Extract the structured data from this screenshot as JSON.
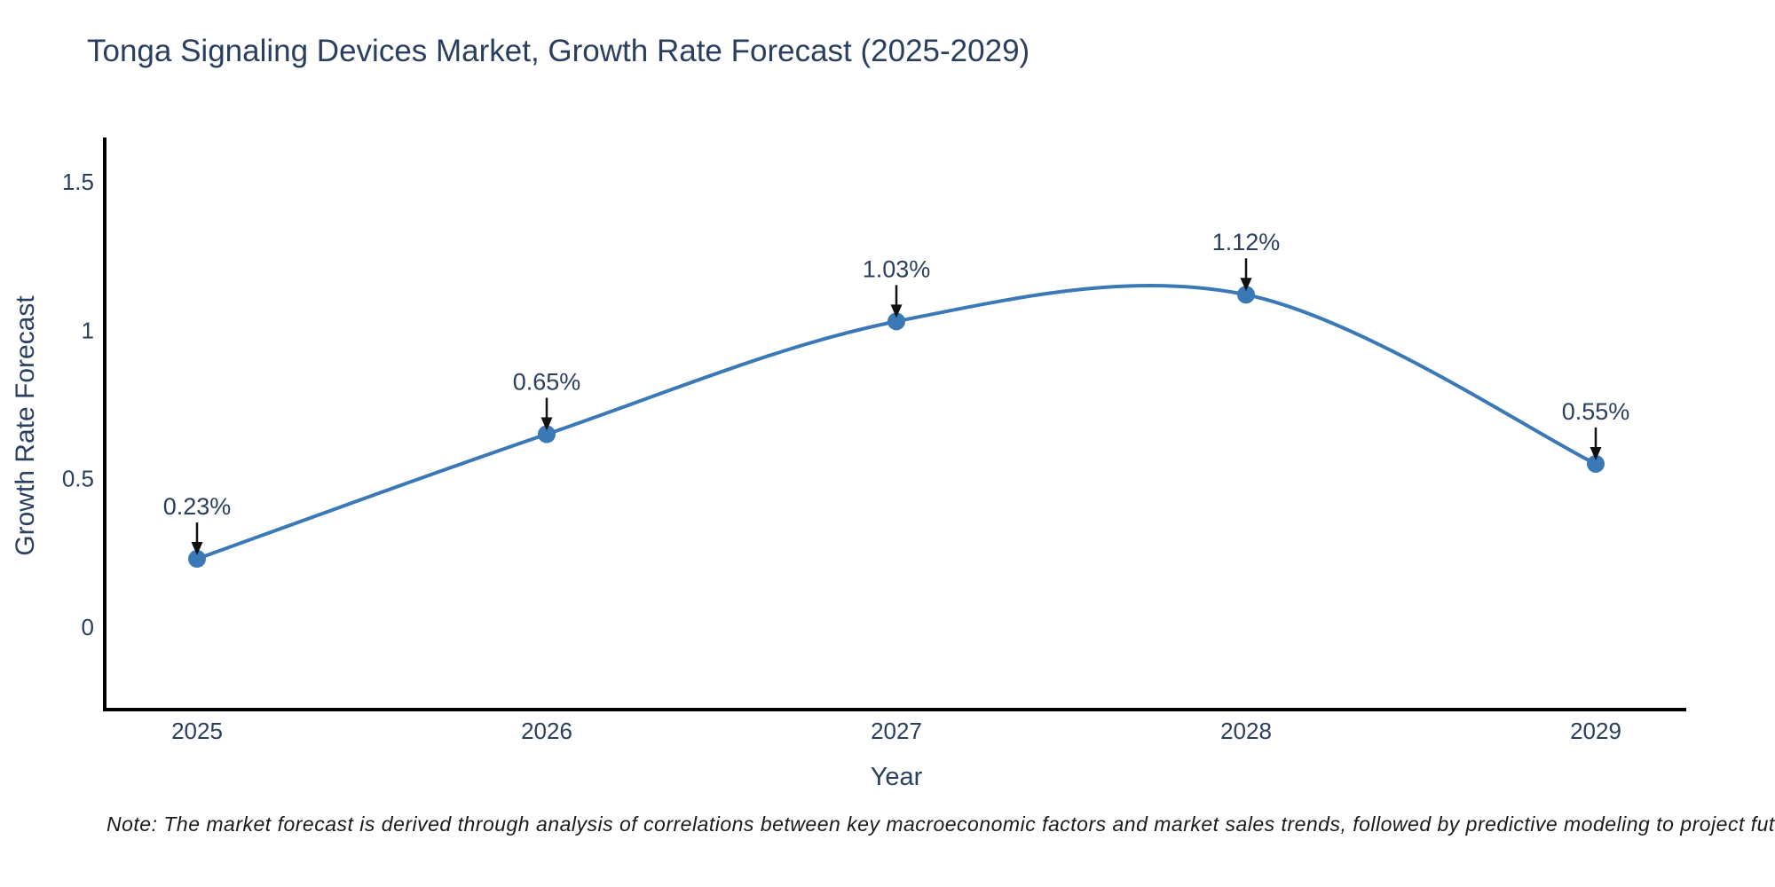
{
  "title": "Tonga Signaling Devices Market, Growth Rate Forecast (2025-2029)",
  "note": "Note: The market forecast is derived through analysis of correlations between key macroeconomic factors and market sales trends, followed by predictive modeling to project future sales",
  "chart_data": {
    "type": "line",
    "line_shape": "spline",
    "title": "Tonga Signaling Devices Market, Growth Rate Forecast (2025-2029)",
    "xlabel": "Year",
    "ylabel": "Growth Rate Forecast",
    "x": [
      2025,
      2026,
      2027,
      2028,
      2029
    ],
    "series": [
      {
        "name": "Growth Rate Forecast",
        "values": [
          0.23,
          0.65,
          1.03,
          1.12,
          0.55
        ]
      }
    ],
    "point_labels": [
      "0.23%",
      "0.65%",
      "1.03%",
      "1.12%",
      "0.55%"
    ],
    "yticks": [
      0,
      0.5,
      1,
      1.5
    ],
    "ylim": [
      -0.28,
      1.65
    ],
    "grid": false,
    "legend": false,
    "colors": {
      "line": "#3a79b5",
      "marker": "#3a79b5",
      "axis": "#000000",
      "text": "#2a3f5f",
      "annotation": "#2a3f5f",
      "arrow": "#111111",
      "note": "#1a1a1a",
      "background": "#ffffff"
    }
  }
}
